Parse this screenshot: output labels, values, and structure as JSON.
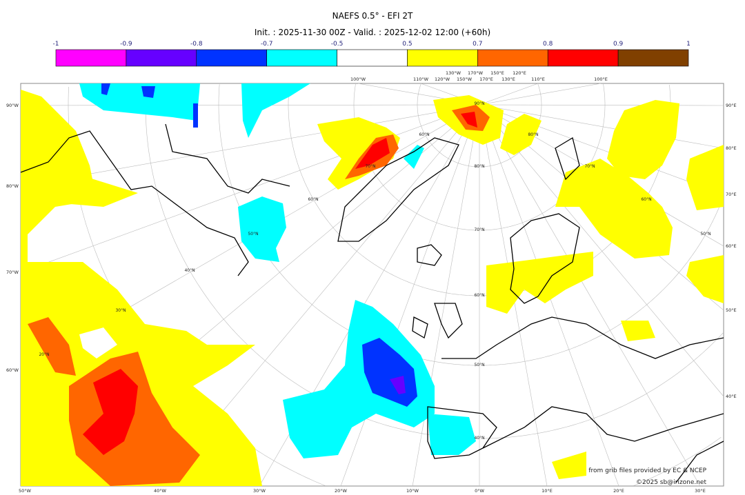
{
  "header": {
    "title": "NAEFS 0.5° - EFI 2T",
    "subtitle": "Init. : 2025-11-30 00Z - Valid. : 2025-12-02 12:00 (+60h)"
  },
  "colorbar": {
    "ticks": [
      "-1",
      "-0.9",
      "-0.8",
      "-0.7",
      "-0.5",
      "0.5",
      "0.7",
      "0.8",
      "0.9",
      "1"
    ],
    "colors": [
      "#ff00ff",
      "#6600ff",
      "#0033ff",
      "#00ffff",
      "#ffffff",
      "#ffff00",
      "#ff6600",
      "#ff0000",
      "#804000"
    ]
  },
  "map": {
    "top_labels": [
      "100°W",
      "110°W",
      "120°W",
      "130°W",
      "150°W",
      "170°W",
      "170°E",
      "150°E",
      "130°E",
      "120°E",
      "110°E",
      "100°E"
    ],
    "left_labels": [
      "90°W",
      "80°W",
      "70°W",
      "60°W"
    ],
    "right_labels": [
      "90°E",
      "80°E",
      "70°E",
      "60°E",
      "50°E",
      "40°E"
    ],
    "bottom_labels": [
      "50°W",
      "40°W",
      "30°W",
      "20°W",
      "10°W",
      "0°W",
      "10°E",
      "20°E",
      "30°E"
    ],
    "lat_labels": [
      "90°N",
      "80°N",
      "70°N",
      "60°N",
      "50°N",
      "40°N",
      "60°N",
      "70°N",
      "60°N",
      "50°N",
      "40°N",
      "30°N",
      "20°N",
      "80°N",
      "70°N",
      "60°N",
      "50°N"
    ]
  },
  "credits": {
    "source": "from grib files provided by EC & NCEP",
    "copyright": "©2025 sb@irizone.net"
  }
}
